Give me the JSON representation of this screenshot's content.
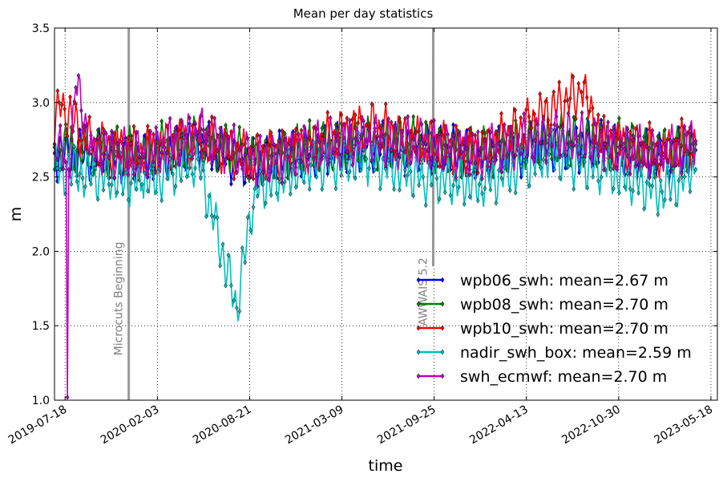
{
  "chart_data": {
    "type": "line",
    "title": "Mean per day statistics",
    "xlabel": "time",
    "ylabel": "m",
    "xlim": [
      "2019-06-25",
      "2023-06-01"
    ],
    "ylim": [
      1.0,
      3.5
    ],
    "x_ticks": [
      "2019-07-18",
      "2020-02-03",
      "2020-08-21",
      "2021-03-09",
      "2021-09-25",
      "2022-04-13",
      "2022-10-30",
      "2023-05-18"
    ],
    "y_ticks": [
      "1.0",
      "1.5",
      "2.0",
      "2.5",
      "3.0",
      "3.5"
    ],
    "grid": true,
    "legend_position": "lower-right",
    "annotations": [
      {
        "label": "Microcuts Beginning",
        "date": "2019-12-03"
      },
      {
        "label": "AWWAIS 5.2",
        "date": "2021-09-23"
      }
    ],
    "series": [
      {
        "name": "wpb06_swh: mean=2.67 m",
        "color": "#0000ff",
        "points": [
          [
            "2019-06-25",
            2.66
          ],
          [
            "2019-09-15",
            2.65
          ],
          [
            "2020-01-01",
            2.62
          ],
          [
            "2020-05-01",
            2.72
          ],
          [
            "2020-09-01",
            2.58
          ],
          [
            "2021-01-01",
            2.68
          ],
          [
            "2021-05-01",
            2.7
          ],
          [
            "2021-09-01",
            2.69
          ],
          [
            "2022-01-01",
            2.64
          ],
          [
            "2022-06-01",
            2.72
          ],
          [
            "2022-10-01",
            2.7
          ],
          [
            "2023-02-01",
            2.62
          ],
          [
            "2023-04-15",
            2.68
          ]
        ]
      },
      {
        "name": "wpb08_swh: mean=2.70 m",
        "color": "#008000",
        "points": [
          [
            "2019-06-25",
            2.7
          ],
          [
            "2019-09-15",
            2.68
          ],
          [
            "2020-01-01",
            2.66
          ],
          [
            "2020-05-01",
            2.74
          ],
          [
            "2020-09-01",
            2.62
          ],
          [
            "2021-01-01",
            2.7
          ],
          [
            "2021-05-01",
            2.74
          ],
          [
            "2021-09-01",
            2.72
          ],
          [
            "2022-01-01",
            2.66
          ],
          [
            "2022-06-01",
            2.75
          ],
          [
            "2022-10-01",
            2.73
          ],
          [
            "2023-02-01",
            2.66
          ],
          [
            "2023-04-15",
            2.72
          ]
        ]
      },
      {
        "name": "wpb10_swh: mean=2.70 m",
        "color": "#ff0000",
        "points": [
          [
            "2019-06-25",
            2.72
          ],
          [
            "2019-07-05",
            3.0
          ],
          [
            "2019-09-15",
            2.7
          ],
          [
            "2020-01-01",
            2.66
          ],
          [
            "2020-05-01",
            2.75
          ],
          [
            "2020-09-01",
            2.62
          ],
          [
            "2021-01-01",
            2.7
          ],
          [
            "2021-05-01",
            2.85
          ],
          [
            "2021-09-01",
            2.72
          ],
          [
            "2022-01-01",
            2.66
          ],
          [
            "2022-08-10",
            3.07
          ],
          [
            "2022-10-01",
            2.73
          ],
          [
            "2023-02-01",
            2.66
          ],
          [
            "2023-04-15",
            2.74
          ]
        ]
      },
      {
        "name": "nadir_swh_box: mean=2.59 m",
        "color": "#00bfbf",
        "points": [
          [
            "2019-06-25",
            2.55
          ],
          [
            "2019-09-15",
            2.52
          ],
          [
            "2020-01-01",
            2.45
          ],
          [
            "2020-05-01",
            2.62
          ],
          [
            "2020-07-24",
            1.62
          ],
          [
            "2020-09-01",
            2.42
          ],
          [
            "2021-01-01",
            2.58
          ],
          [
            "2021-05-01",
            2.62
          ],
          [
            "2021-09-01",
            2.5
          ],
          [
            "2022-01-01",
            2.45
          ],
          [
            "2022-06-01",
            2.65
          ],
          [
            "2022-10-01",
            2.55
          ],
          [
            "2023-02-01",
            2.4
          ],
          [
            "2023-04-15",
            2.55
          ]
        ]
      },
      {
        "name": "swh_ecmwf: mean=2.70 m",
        "color": "#bf00bf",
        "points": [
          [
            "2019-06-25",
            2.72
          ],
          [
            "2019-07-20",
            2.6
          ],
          [
            "2019-07-23",
            1.02
          ],
          [
            "2019-07-26",
            2.55
          ],
          [
            "2019-08-10",
            3.1
          ],
          [
            "2019-09-15",
            2.7
          ],
          [
            "2020-01-01",
            2.64
          ],
          [
            "2020-05-01",
            2.8
          ],
          [
            "2020-09-01",
            2.6
          ],
          [
            "2021-01-01",
            2.7
          ],
          [
            "2021-05-01",
            2.75
          ],
          [
            "2021-09-01",
            2.72
          ],
          [
            "2022-01-01",
            2.66
          ],
          [
            "2022-06-01",
            2.78
          ],
          [
            "2022-10-01",
            2.72
          ],
          [
            "2023-02-01",
            2.64
          ],
          [
            "2023-04-15",
            2.74
          ]
        ]
      }
    ]
  }
}
